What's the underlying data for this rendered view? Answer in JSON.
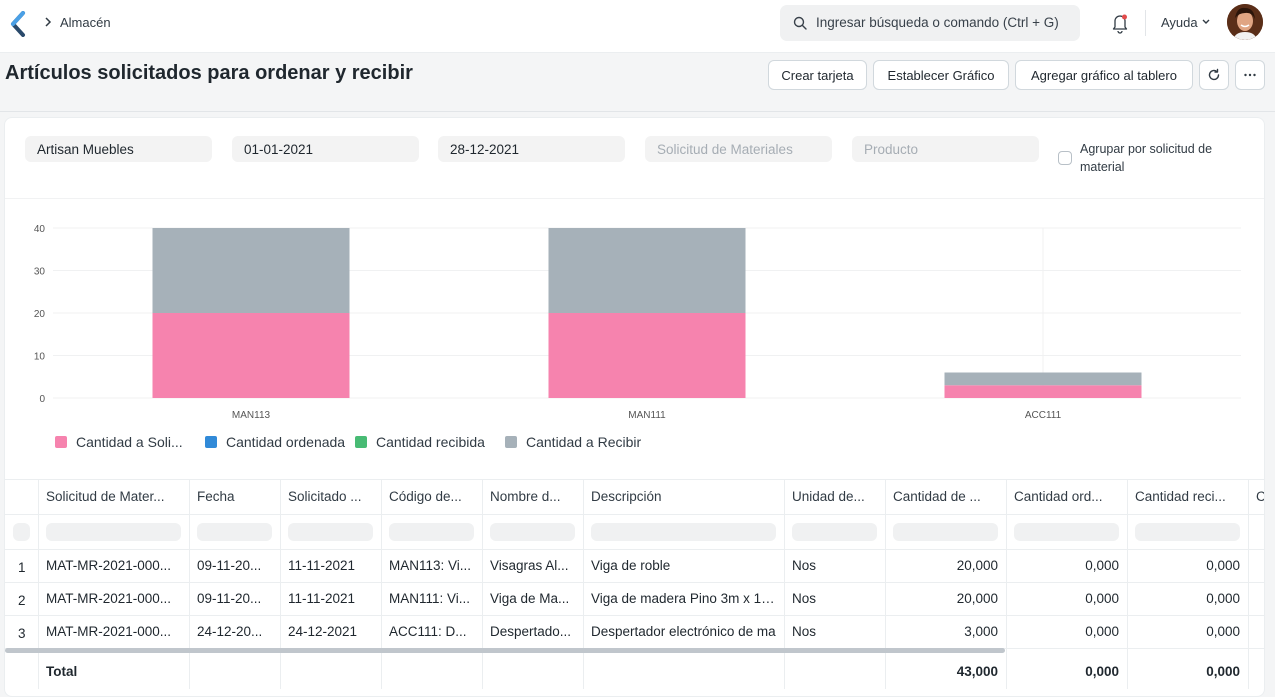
{
  "app": {
    "breadcrumb": "Almacén"
  },
  "search": {
    "placeholder": "Ingresar búsqueda o comando (Ctrl + G)"
  },
  "header": {
    "help_label": "Ayuda"
  },
  "page": {
    "title": "Artículos solicitados para ordenar y recibir",
    "buttons": {
      "create_card": "Crear tarjeta",
      "set_chart": "Establecer Gráfico",
      "add_to_dashboard": "Agregar gráfico al tablero"
    }
  },
  "filters": {
    "company": "Artisan Muebles",
    "from_date": "01-01-2021",
    "to_date": "28-12-2021",
    "material_request_placeholder": "Solicitud de Materiales",
    "product_placeholder": "Producto",
    "group_by_label": "Agrupar por solicitud de material"
  },
  "chart_data": {
    "type": "bar",
    "stacked": true,
    "categories": [
      "MAN113",
      "MAN111",
      "ACC111"
    ],
    "yticks": [
      0,
      10,
      20,
      30,
      40
    ],
    "ylim": [
      0,
      40
    ],
    "series": [
      {
        "name": "Cantidad a Soli...",
        "color": "#f683ae",
        "values": [
          20,
          20,
          3
        ]
      },
      {
        "name": "Cantidad ordenada",
        "color": "#318ad8",
        "values": [
          0,
          0,
          0
        ]
      },
      {
        "name": "Cantidad recibida",
        "color": "#48bb74",
        "values": [
          0,
          0,
          0
        ]
      },
      {
        "name": "Cantidad a Recibir",
        "color": "#a6b1b9",
        "values": [
          20,
          20,
          3
        ]
      }
    ],
    "legend": "bottom-left",
    "grid": true
  },
  "table": {
    "columns": [
      "Solicitud de Mater...",
      "Fecha",
      "Solicitado ...",
      "Código de...",
      "Nombre d...",
      "Descripción",
      "Unidad de...",
      "Cantidad de ...",
      "Cantidad ord...",
      "Cantidad reci...",
      "C"
    ],
    "rows": [
      {
        "n": "1",
        "cells": [
          "MAT-MR-2021-000...",
          "09-11-20...",
          "11-11-2021",
          "MAN113: Vi...",
          "Visagras Al...",
          "Viga de roble",
          "Nos",
          "20,000",
          "0,000",
          "0,000"
        ]
      },
      {
        "n": "2",
        "cells": [
          "MAT-MR-2021-000...",
          "09-11-20...",
          "11-11-2021",
          "MAN111: Vi...",
          "Viga de Ma...",
          "Viga de madera Pino 3m x 12cı",
          "Nos",
          "20,000",
          "0,000",
          "0,000"
        ]
      },
      {
        "n": "3",
        "cells": [
          "MAT-MR-2021-000...",
          "24-12-20...",
          "24-12-2021",
          "ACC111: D...",
          "Despertado...",
          "Despertador electrónico de ma",
          "Nos",
          "3,000",
          "0,000",
          "0,000"
        ]
      }
    ],
    "total": {
      "label": "Total",
      "qty_requested": "43,000",
      "qty_ordered": "0,000",
      "qty_received": "0,000"
    }
  },
  "colors": {
    "accent": "#1f272e",
    "bar_requested": "#f683ae",
    "bar_to_receive": "#a6b1b9"
  }
}
